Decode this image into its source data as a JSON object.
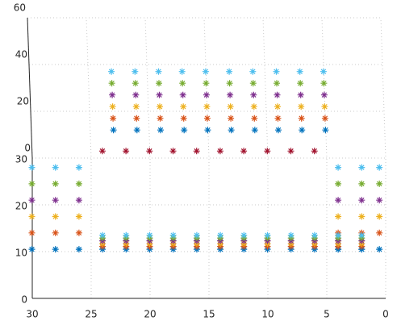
{
  "chart_data": {
    "type": "scatter3d",
    "xlim": [
      0,
      30
    ],
    "ylim": [
      0,
      30
    ],
    "zlim": [
      0,
      60
    ],
    "xticks": [
      0,
      5,
      10,
      15,
      20,
      25,
      30
    ],
    "yticks": [
      0,
      10,
      20,
      30
    ],
    "zticks": [
      0,
      20,
      40,
      60
    ],
    "grid": true,
    "series": [
      {
        "color": "#0072bd",
        "x": [
          23,
          21,
          19,
          17,
          15,
          13,
          11,
          9,
          7,
          5,
          24,
          22,
          20,
          18,
          16,
          14,
          12,
          10,
          8,
          6,
          4,
          2,
          30,
          28,
          26,
          4,
          2,
          0.5
        ],
        "y": [
          28,
          28,
          28,
          28,
          28,
          28,
          28,
          28,
          28,
          28,
          8,
          8,
          8,
          8,
          8,
          8,
          8,
          8,
          8,
          8,
          8,
          8,
          8,
          8,
          8,
          8,
          8,
          8
        ],
        "z": [
          16,
          16,
          16,
          16,
          16,
          16,
          16,
          16,
          16,
          16,
          5,
          5,
          5,
          5,
          5,
          5,
          5,
          5,
          5,
          5,
          5,
          5,
          5,
          5,
          5,
          5,
          5,
          5
        ]
      },
      {
        "color": "#d95319",
        "x": [
          23,
          21,
          19,
          17,
          15,
          13,
          11,
          9,
          7,
          5,
          24,
          22,
          20,
          18,
          16,
          14,
          12,
          10,
          8,
          6,
          4,
          2,
          30,
          28,
          26,
          4,
          2,
          0.5
        ],
        "y": [
          28,
          28,
          28,
          28,
          28,
          28,
          28,
          28,
          28,
          28,
          8.6,
          8.6,
          8.6,
          8.6,
          8.6,
          8.6,
          8.6,
          8.6,
          8.6,
          8.6,
          8.6,
          8.6,
          11.5,
          11.5,
          11.5,
          11.5,
          11.5,
          11.5
        ],
        "z": [
          21,
          21,
          21,
          21,
          21,
          21,
          21,
          21,
          21,
          21,
          5,
          5,
          5,
          5,
          5,
          5,
          5,
          5,
          5,
          5,
          5,
          5,
          5,
          5,
          5,
          5,
          5,
          5
        ]
      },
      {
        "color": "#edb120",
        "x": [
          23,
          21,
          19,
          17,
          15,
          13,
          11,
          9,
          7,
          5,
          24,
          22,
          20,
          18,
          16,
          14,
          12,
          10,
          8,
          6,
          4,
          2,
          30,
          28,
          26,
          4,
          2,
          0.5
        ],
        "y": [
          28,
          28,
          28,
          28,
          28,
          28,
          28,
          28,
          28,
          28,
          9.2,
          9.2,
          9.2,
          9.2,
          9.2,
          9.2,
          9.2,
          9.2,
          9.2,
          9.2,
          9.2,
          9.2,
          15,
          15,
          15,
          15,
          15,
          15
        ],
        "z": [
          26,
          26,
          26,
          26,
          26,
          26,
          26,
          26,
          26,
          26,
          5,
          5,
          5,
          5,
          5,
          5,
          5,
          5,
          5,
          5,
          5,
          5,
          5,
          5,
          5,
          5,
          5,
          5
        ]
      },
      {
        "color": "#7e2f8e",
        "x": [
          23,
          21,
          19,
          17,
          15,
          13,
          11,
          9,
          7,
          5,
          24,
          22,
          20,
          18,
          16,
          14,
          12,
          10,
          8,
          6,
          4,
          2,
          30,
          28,
          26,
          4,
          2,
          0.5
        ],
        "y": [
          28,
          28,
          28,
          28,
          28,
          28,
          28,
          28,
          28,
          28,
          9.8,
          9.8,
          9.8,
          9.8,
          9.8,
          9.8,
          9.8,
          9.8,
          9.8,
          9.8,
          9.8,
          9.8,
          18.5,
          18.5,
          18.5,
          18.5,
          18.5,
          18.5
        ],
        "z": [
          31,
          31,
          31,
          31,
          31,
          31,
          31,
          31,
          31,
          31,
          5,
          5,
          5,
          5,
          5,
          5,
          5,
          5,
          5,
          5,
          5,
          5,
          5,
          5,
          5,
          5,
          5,
          5
        ]
      },
      {
        "color": "#77ac30",
        "x": [
          23,
          21,
          19,
          17,
          15,
          13,
          11,
          9,
          7,
          5,
          24,
          22,
          20,
          18,
          16,
          14,
          12,
          10,
          8,
          6,
          4,
          2,
          30,
          28,
          26,
          4,
          2,
          0.5
        ],
        "y": [
          28,
          28,
          28,
          28,
          28,
          28,
          28,
          28,
          28,
          28,
          10.4,
          10.4,
          10.4,
          10.4,
          10.4,
          10.4,
          10.4,
          10.4,
          10.4,
          10.4,
          10.4,
          10.4,
          22,
          22,
          22,
          22,
          22,
          22
        ],
        "z": [
          36,
          36,
          36,
          36,
          36,
          36,
          36,
          36,
          36,
          36,
          5,
          5,
          5,
          5,
          5,
          5,
          5,
          5,
          5,
          5,
          5,
          5,
          5,
          5,
          5,
          5,
          5,
          5
        ]
      },
      {
        "color": "#4dbeee",
        "x": [
          23,
          21,
          19,
          17,
          15,
          13,
          11,
          9,
          7,
          5,
          24,
          22,
          20,
          18,
          16,
          14,
          12,
          10,
          8,
          6,
          4,
          2,
          30,
          28,
          26,
          4,
          2,
          0.5
        ],
        "y": [
          28,
          28,
          28,
          28,
          28,
          28,
          28,
          28,
          28,
          28,
          11,
          11,
          11,
          11,
          11,
          11,
          11,
          11,
          11,
          11,
          11,
          11,
          25.5,
          25.5,
          25.5,
          25.5,
          25.5,
          25.5
        ],
        "z": [
          41,
          41,
          41,
          41,
          41,
          41,
          41,
          41,
          41,
          41,
          5,
          5,
          5,
          5,
          5,
          5,
          5,
          5,
          5,
          5,
          5,
          5,
          5,
          5,
          5,
          5,
          5,
          5
        ]
      },
      {
        "color": "#a2142f",
        "x": [
          24,
          22,
          20,
          18,
          16,
          14,
          12,
          10,
          8,
          6
        ],
        "y": [
          28,
          28,
          28,
          28,
          28,
          28,
          28,
          28,
          28,
          28
        ],
        "z": [
          7,
          7,
          7,
          7,
          7,
          7,
          7,
          7,
          7,
          7
        ]
      }
    ]
  }
}
